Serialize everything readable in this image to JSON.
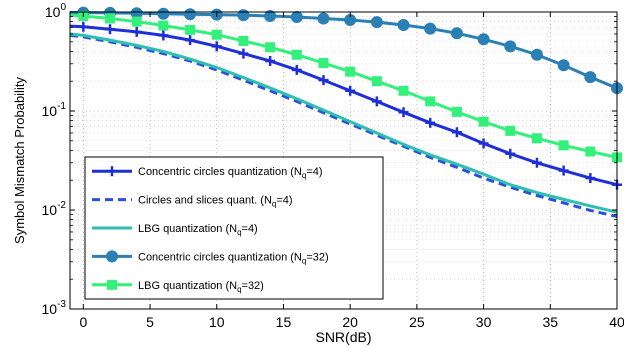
{
  "chart_data": {
    "type": "line",
    "title": "",
    "xlabel": "SNR(dB)",
    "ylabel": "Symbol Mismatch Probability",
    "xlim": [
      -1,
      40
    ],
    "ylim": [
      0.001,
      1
    ],
    "yscale": "log",
    "grid": true,
    "legend_position": "bottom-left",
    "x_ticks": [
      0,
      5,
      10,
      15,
      20,
      25,
      30,
      35,
      40
    ],
    "x_tick_labels": [
      "0",
      "5",
      "10",
      "15",
      "20",
      "25",
      "30",
      "35",
      "40"
    ],
    "y_ticks": [
      0.001,
      0.01,
      0.1,
      1
    ],
    "y_tick_labels": [
      {
        "base": "10",
        "exp": "-3"
      },
      {
        "base": "10",
        "exp": "-2"
      },
      {
        "base": "10",
        "exp": "-1"
      },
      {
        "base": "10",
        "exp": "0"
      }
    ],
    "x": [
      -1,
      0,
      2,
      4,
      6,
      8,
      10,
      12,
      14,
      16,
      18,
      20,
      22,
      24,
      26,
      28,
      30,
      32,
      34,
      36,
      38,
      40
    ],
    "series": [
      {
        "name": "Concentric circles quantization (N",
        "name_sub": "q",
        "name_tail": "=4)",
        "color": "#1f2fd8",
        "dash": false,
        "marker": "plus",
        "values": [
          0.72,
          0.71,
          0.67,
          0.63,
          0.58,
          0.52,
          0.45,
          0.38,
          0.32,
          0.26,
          0.205,
          0.16,
          0.125,
          0.097,
          0.076,
          0.061,
          0.047,
          0.037,
          0.03,
          0.025,
          0.021,
          0.018
        ]
      },
      {
        "name": "Circles and slices quant. (N",
        "name_sub": "q",
        "name_tail": "=4)",
        "color": "#2c4fe0",
        "dash": true,
        "marker": "none",
        "values": [
          0.58,
          0.56,
          0.5,
          0.44,
          0.38,
          0.32,
          0.26,
          0.205,
          0.16,
          0.125,
          0.096,
          0.074,
          0.057,
          0.044,
          0.034,
          0.027,
          0.021,
          0.017,
          0.014,
          0.0118,
          0.0099,
          0.0086
        ]
      },
      {
        "name": "LBG quantization (N",
        "name_sub": "q",
        "name_tail": "=4)",
        "color": "#2fbfb0",
        "dash": false,
        "marker": "none",
        "values": [
          0.6,
          0.58,
          0.52,
          0.46,
          0.4,
          0.335,
          0.275,
          0.218,
          0.171,
          0.133,
          0.102,
          0.078,
          0.06,
          0.046,
          0.036,
          0.029,
          0.023,
          0.018,
          0.015,
          0.0128,
          0.011,
          0.0095
        ]
      },
      {
        "name": "Concentric circles quantization (N",
        "name_sub": "q",
        "name_tail": "=32)",
        "color": "#2a7fb5",
        "dash": false,
        "marker": "circle",
        "values": [
          0.99,
          0.985,
          0.98,
          0.97,
          0.96,
          0.95,
          0.94,
          0.93,
          0.91,
          0.89,
          0.86,
          0.83,
          0.79,
          0.74,
          0.68,
          0.61,
          0.53,
          0.45,
          0.37,
          0.29,
          0.22,
          0.17
        ]
      },
      {
        "name": "LBG quantization (N",
        "name_sub": "q",
        "name_tail": "=32)",
        "color": "#33f07a",
        "dash": false,
        "marker": "square",
        "values": [
          0.93,
          0.91,
          0.86,
          0.8,
          0.73,
          0.66,
          0.59,
          0.51,
          0.44,
          0.37,
          0.305,
          0.25,
          0.2,
          0.16,
          0.125,
          0.098,
          0.078,
          0.063,
          0.053,
          0.045,
          0.039,
          0.034
        ]
      }
    ]
  }
}
